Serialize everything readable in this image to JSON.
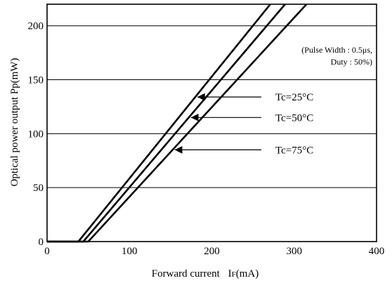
{
  "chart_data": {
    "type": "line",
    "xlabel_main": "Forward current",
    "xlabel_symbol": "I",
    "xlabel_sub": "F",
    "xlabel_unit": "(mA)",
    "ylabel": "Optical power output  Pp(mW)",
    "xlim": [
      0,
      400
    ],
    "ylim": [
      0,
      220
    ],
    "xticks": [
      "0",
      "100",
      "200",
      "300",
      "400"
    ],
    "yticks": [
      "0",
      "50",
      "100",
      "150",
      "200"
    ],
    "grid": "horizontal",
    "note": [
      "(Pulse Width : 0.5μs,",
      "Duty : 50%)"
    ],
    "series": [
      {
        "name": "Tc=25°C",
        "x": [
          0,
          38,
          271
        ],
        "y": [
          0,
          0,
          220
        ]
      },
      {
        "name": "Tc=50°C",
        "x": [
          0,
          44,
          289
        ],
        "y": [
          0,
          0,
          220
        ]
      },
      {
        "name": "Tc=75°C",
        "x": [
          0,
          50,
          315
        ],
        "y": [
          0,
          0,
          220
        ]
      }
    ]
  }
}
